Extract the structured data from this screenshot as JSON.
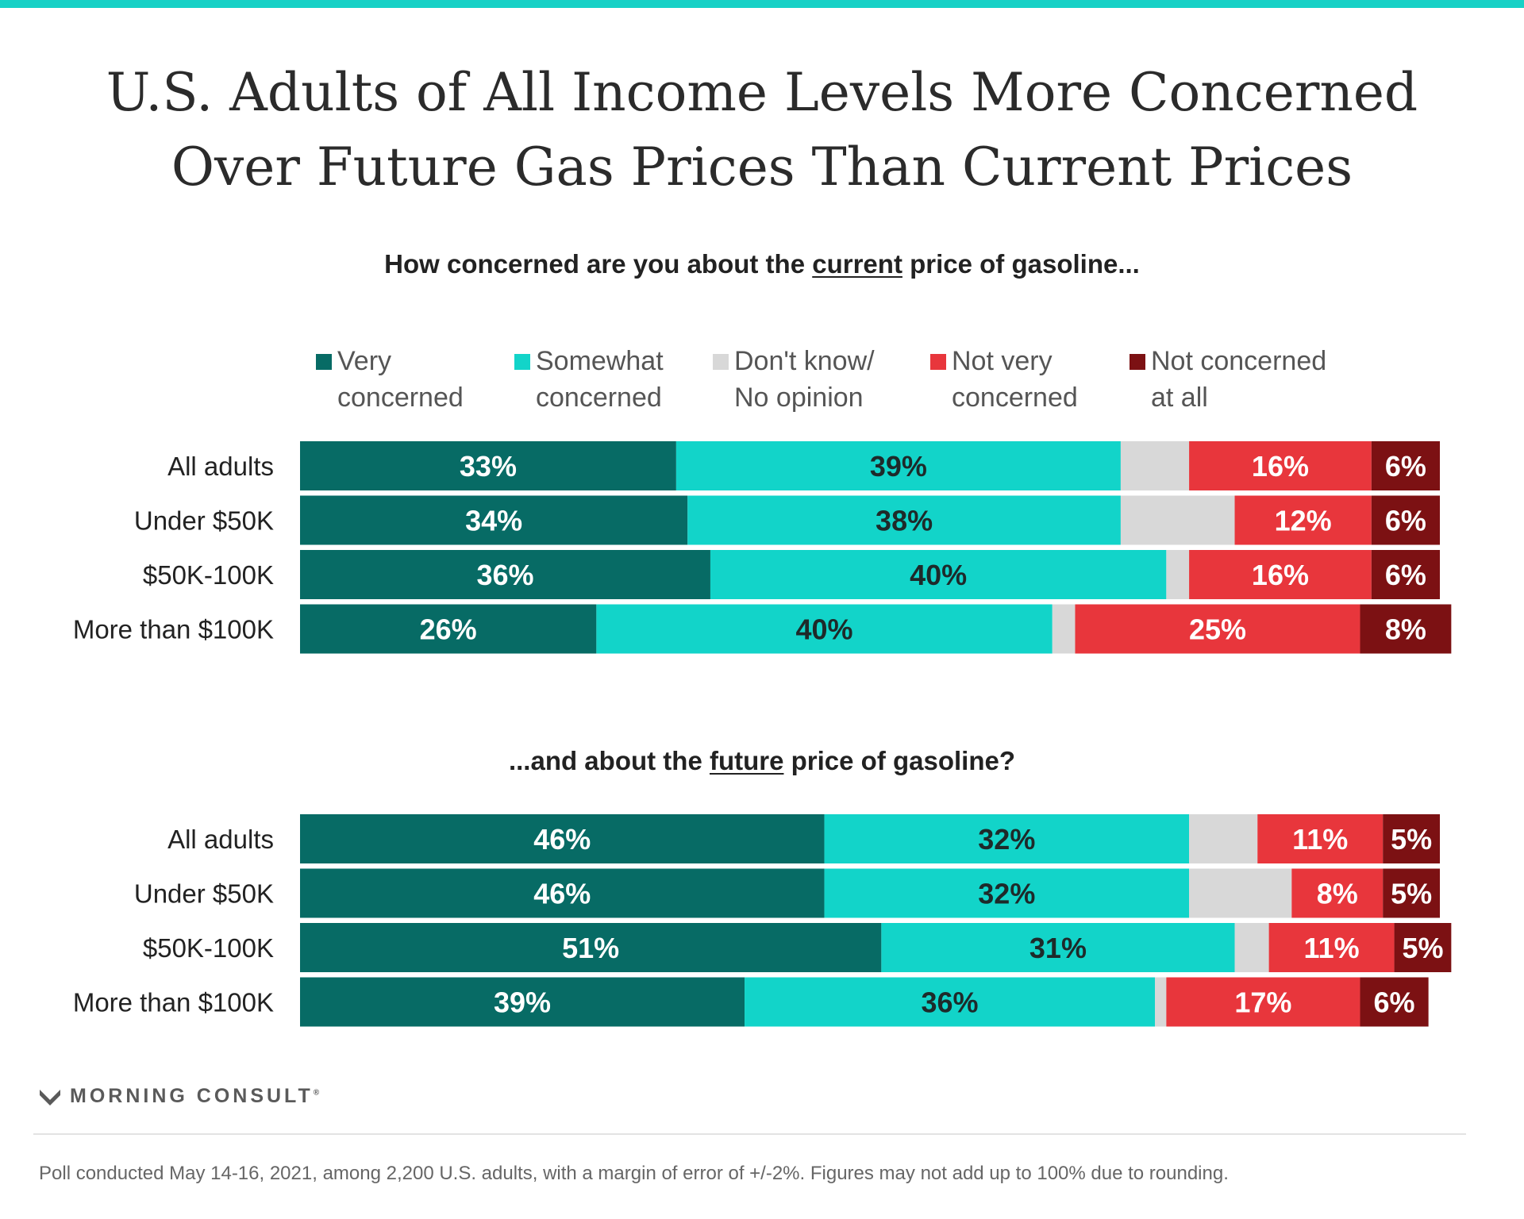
{
  "title": {
    "line1": "U.S. Adults of All Income Levels More Concerned",
    "line2": "Over Future Gas Prices Than Current Prices"
  },
  "panels": {
    "current": {
      "prefix": "How concerned are you about the ",
      "emphasis": "current",
      "suffix": " price of gasoline..."
    },
    "future": {
      "prefix": "...and about the ",
      "emphasis": "future",
      "suffix": " price of gasoline?"
    }
  },
  "legend": [
    {
      "line1": "Very",
      "line2": "concerned",
      "color": "#076b65"
    },
    {
      "line1": "Somewhat",
      "line2": "concerned",
      "color": "#12d4c9"
    },
    {
      "line1": "Don't know/",
      "line2": "No opinion",
      "color": "#d8d8d8"
    },
    {
      "line1": "Not very",
      "line2": "concerned",
      "color": "#e8363c"
    },
    {
      "line1": "Not concerned",
      "line2": "at all",
      "color": "#7c1113"
    }
  ],
  "chart_data": [
    {
      "type": "bar",
      "orientation": "horizontal",
      "stacked": true,
      "title": "How concerned are you about the current price of gasoline...",
      "categories": [
        "All adults",
        "Under $50K",
        "$50K-100K",
        "More than $100K"
      ],
      "series": [
        {
          "name": "Very concerned",
          "color": "#076b65",
          "values": [
            33,
            34,
            36,
            26
          ],
          "labels": [
            "33%",
            "34%",
            "36%",
            "26%"
          ]
        },
        {
          "name": "Somewhat concerned",
          "color": "#12d4c9",
          "values": [
            39,
            38,
            40,
            40
          ],
          "labels": [
            "39%",
            "38%",
            "40%",
            "40%"
          ]
        },
        {
          "name": "Don't know/No opinion",
          "color": "#d8d8d8",
          "values": [
            6,
            10,
            2,
            2
          ],
          "labels": [
            "",
            "",
            "",
            ""
          ]
        },
        {
          "name": "Not very concerned",
          "color": "#e8363c",
          "values": [
            16,
            12,
            16,
            25
          ],
          "labels": [
            "16%",
            "12%",
            "16%",
            "25%"
          ]
        },
        {
          "name": "Not concerned at all",
          "color": "#7c1113",
          "values": [
            6,
            6,
            6,
            8
          ],
          "labels": [
            "6%",
            "6%",
            "6%",
            "8%"
          ]
        }
      ],
      "xlim": [
        0,
        100
      ]
    },
    {
      "type": "bar",
      "orientation": "horizontal",
      "stacked": true,
      "title": "...and about the future price of gasoline?",
      "categories": [
        "All adults",
        "Under $50K",
        "$50K-100K",
        "More than $100K"
      ],
      "series": [
        {
          "name": "Very concerned",
          "color": "#076b65",
          "values": [
            46,
            46,
            51,
            39
          ],
          "labels": [
            "46%",
            "46%",
            "51%",
            "39%"
          ]
        },
        {
          "name": "Somewhat concerned",
          "color": "#12d4c9",
          "values": [
            32,
            32,
            31,
            36
          ],
          "labels": [
            "32%",
            "32%",
            "31%",
            "36%"
          ]
        },
        {
          "name": "Don't know/No opinion",
          "color": "#d8d8d8",
          "values": [
            6,
            9,
            3,
            1
          ],
          "labels": [
            "",
            "",
            "",
            ""
          ]
        },
        {
          "name": "Not very concerned",
          "color": "#e8363c",
          "values": [
            11,
            8,
            11,
            17
          ],
          "labels": [
            "11%",
            "8%",
            "11%",
            "17%"
          ]
        },
        {
          "name": "Not concerned at all",
          "color": "#7c1113",
          "values": [
            5,
            5,
            5,
            6
          ],
          "labels": [
            "5%",
            "5%",
            "5%",
            "6%"
          ]
        }
      ],
      "xlim": [
        0,
        100
      ]
    }
  ],
  "branding": {
    "logo_text": "MORNING CONSULT",
    "logo_mark": "®"
  },
  "footnote": "Poll conducted May 14-16, 2021, among 2,200 U.S. adults, with a margin of error of +/-2%. Figures may not add up to 100% due to rounding."
}
